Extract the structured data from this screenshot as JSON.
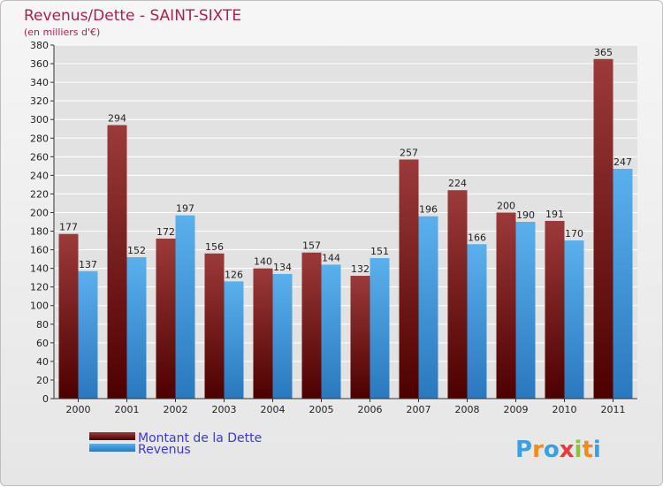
{
  "chart_data": {
    "type": "bar",
    "title": "Revenus/Dette - SAINT-SIXTE",
    "subtitle": "(en milliers d'€)",
    "categories": [
      "2000",
      "2001",
      "2002",
      "2003",
      "2004",
      "2005",
      "2006",
      "2007",
      "2008",
      "2009",
      "2010",
      "2011"
    ],
    "series": [
      {
        "name": "Montant de la Dette",
        "values": [
          177,
          294,
          172,
          156,
          140,
          157,
          132,
          257,
          224,
          200,
          191,
          365
        ]
      },
      {
        "name": "Revenus",
        "values": [
          137,
          152,
          197,
          126,
          134,
          144,
          151,
          196,
          166,
          190,
          170,
          247
        ]
      }
    ],
    "ylim": [
      0,
      380
    ],
    "ytick_step": 20,
    "grid": true,
    "legend": "bottom-left"
  },
  "colors": {
    "dette_top": "#9c3a3a",
    "dette_bottom": "#4d0000",
    "revenus_top": "#5ab0ec",
    "revenus_bottom": "#2a78be",
    "grid": "#ffffff"
  },
  "logo": {
    "text": "Proxiti",
    "letters": [
      "P",
      "r",
      "o",
      "x",
      "i",
      "t",
      "i"
    ],
    "colors": [
      "#3aa0e0",
      "#f08c1a",
      "#3aa0e0",
      "#e83a3a",
      "#8ac43a",
      "#f08c1a",
      "#3aa0e0"
    ]
  }
}
